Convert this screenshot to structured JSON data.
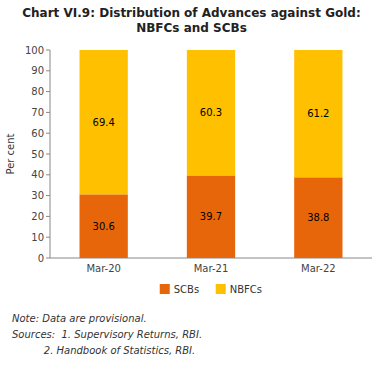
{
  "chart_data": {
    "type": "bar",
    "stacked": true,
    "title": "Chart VI.9: Distribution of Advances against Gold:\nNBFCs and SCBs",
    "categories": [
      "Mar-20",
      "Mar-21",
      "Mar-22"
    ],
    "series": [
      {
        "name": "SCBs",
        "color": "#E8660A",
        "values": [
          30.6,
          39.7,
          38.8
        ]
      },
      {
        "name": "NBFCs",
        "color": "#FFC000",
        "values": [
          69.4,
          60.3,
          61.2
        ]
      }
    ],
    "ylabel": "Per cent",
    "ylim": [
      0,
      100
    ],
    "yticks": [
      0,
      10,
      20,
      30,
      40,
      50,
      60,
      70,
      80,
      90,
      100
    ],
    "grid": false,
    "legend": "bottom",
    "data_labels": true,
    "annotations": [
      "Note: Data are provisional.",
      "Sources:  1. Supervisory Returns, RBI.",
      "          2. Handbook of Statistics, RBI."
    ]
  }
}
